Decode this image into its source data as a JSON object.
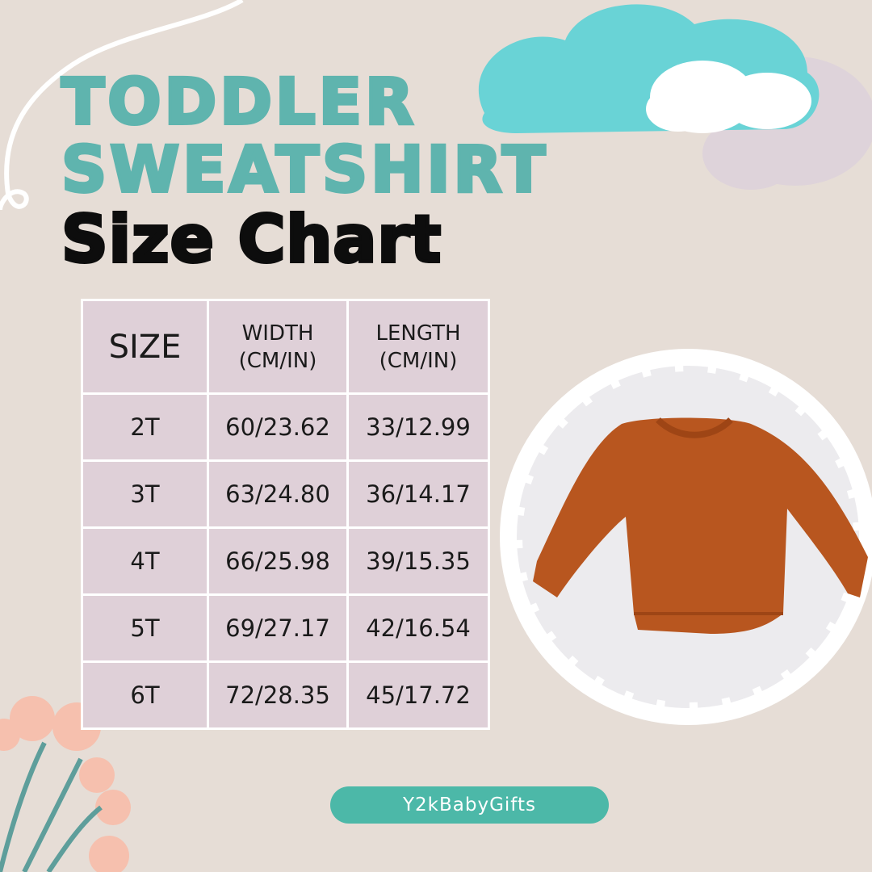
{
  "title": {
    "line1": "TODDLER",
    "line2": "SWEATSHIRT",
    "line3": "Size Chart"
  },
  "table": {
    "headers": [
      {
        "line1": "SIZE",
        "line2": ""
      },
      {
        "line1": "WIDTH",
        "line2": "(CM/IN)"
      },
      {
        "line1": "LENGTH",
        "line2": "(CM/IN)"
      }
    ],
    "rows": [
      [
        "2T",
        "60/23.62",
        "33/12.99"
      ],
      [
        "3T",
        "63/24.80",
        "36/14.17"
      ],
      [
        "4T",
        "66/25.98",
        "39/15.35"
      ],
      [
        "5T",
        "69/27.17",
        "42/16.54"
      ],
      [
        "6T",
        "72/28.35",
        "45/17.72"
      ]
    ]
  },
  "brand": "Y2kBabyGifts",
  "colors": {
    "background": "#e6ddd6",
    "teal": "#5fb4ae",
    "cell": "#dfd0d8",
    "badge": "#4cb8a8",
    "sweatshirt": "#b8561f"
  },
  "icons": [
    "cloud-icon",
    "flower-icon",
    "sweatshirt-image"
  ]
}
